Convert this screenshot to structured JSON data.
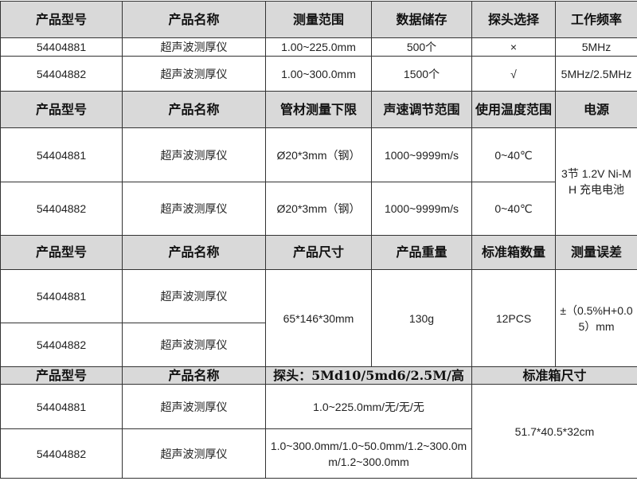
{
  "section1": {
    "headers": [
      "产品型号",
      "产品名称",
      "测量范围",
      "数据储存",
      "探头选择",
      "工作频率"
    ],
    "rows": [
      [
        "54404881",
        "超声波测厚仪",
        "1.00~225.0mm",
        "500个",
        "×",
        "5MHz"
      ],
      [
        "54404882",
        "超声波测厚仪",
        "1.00~300.0mm",
        "1500个",
        "√",
        "5MHz/2.5MHz"
      ]
    ]
  },
  "section2": {
    "headers": [
      "产品型号",
      "产品名称",
      "管材测量下限",
      "声速调节范围",
      "使用温度范围",
      "电源"
    ],
    "rows": [
      [
        "54404881",
        "超声波测厚仪",
        "Ø20*3mm（钢）",
        "1000~9999m/s",
        "0~40℃"
      ],
      [
        "54404882",
        "超声波测厚仪",
        "Ø20*3mm（钢）",
        "1000~9999m/s",
        "0~40℃"
      ]
    ],
    "power": "3节 1.2V Ni-MH 充电电池"
  },
  "section3": {
    "headers": [
      "产品型号",
      "产品名称",
      "产品尺寸",
      "产品重量",
      "标准箱数量",
      "测量误差"
    ],
    "rows": [
      [
        "54404881",
        "超声波测厚仪"
      ],
      [
        "54404882",
        "超声波测厚仪"
      ]
    ],
    "size": "65*146*30mm",
    "weight": "130g",
    "box_qty": "12PCS",
    "error": "±（0.5%H+0.05）mm"
  },
  "section4": {
    "headers": [
      "产品型号",
      "产品名称",
      "探头：5Md10/5md6/2.5M/高",
      "标准箱尺寸"
    ],
    "rows": [
      [
        "54404881",
        "超声波测厚仪",
        "1.0~225.0mm/无/无/无"
      ],
      [
        "54404882",
        "超声波测厚仪",
        "1.0~300.0mm/1.0~50.0mm/1.2~300.0mm/1.2~300.0mm"
      ]
    ],
    "box_size": "51.7*40.5*32cm"
  }
}
